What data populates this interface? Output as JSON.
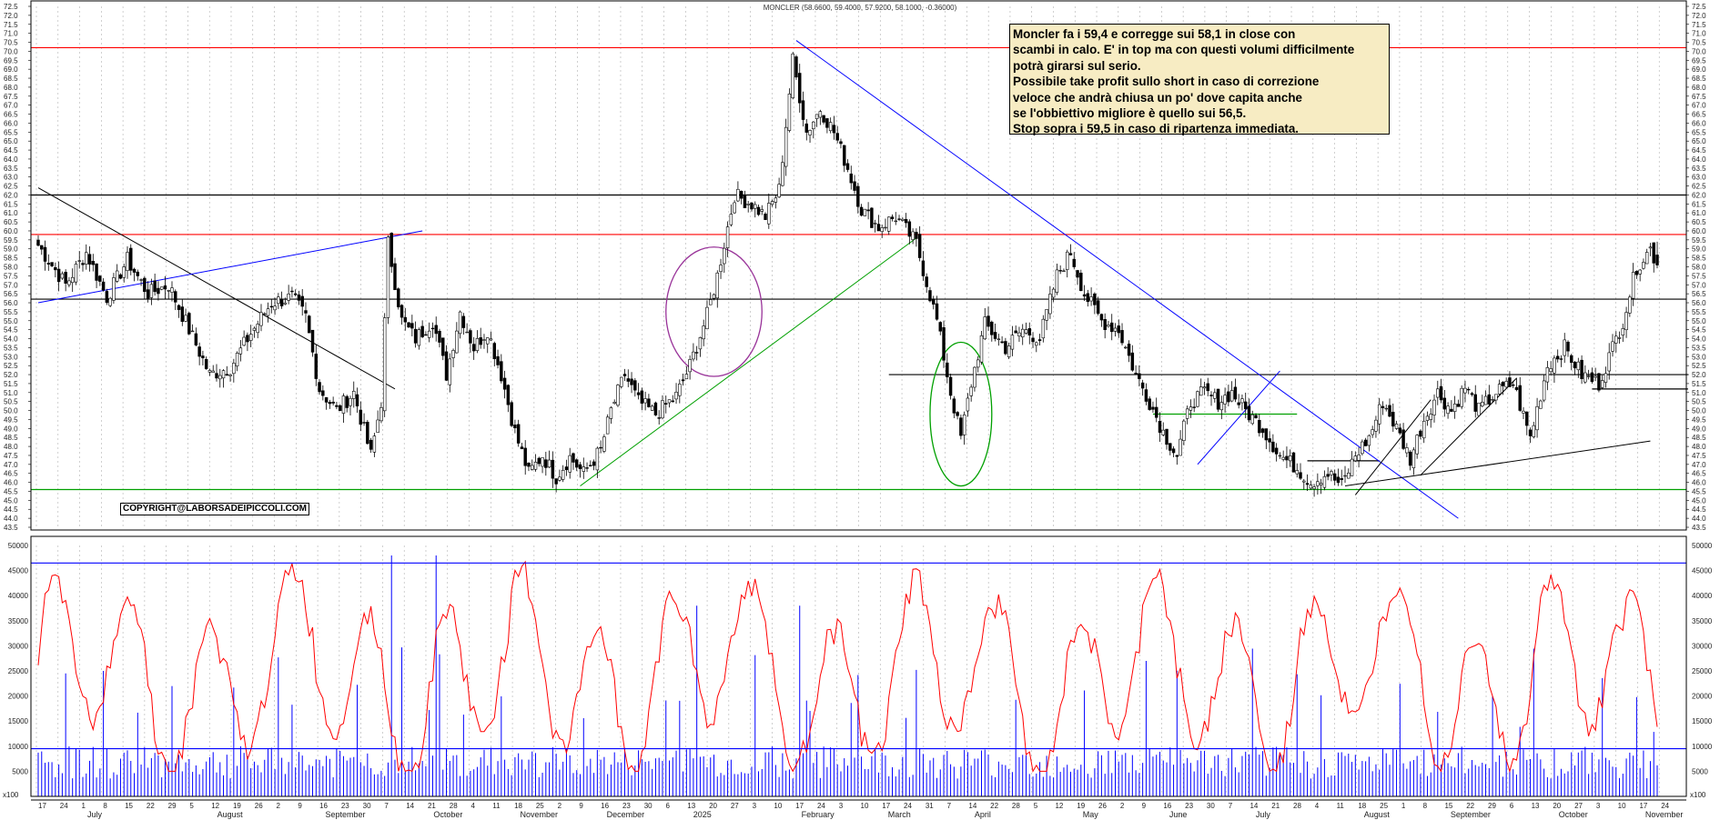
{
  "chart_data": {
    "type": "candlestick",
    "title": "MONCLER (58.6600, 59.4000, 57.9200, 58.1000, -0.36000)",
    "last_bar": {
      "open": 58.66,
      "high": 59.4,
      "low": 57.92,
      "close": 58.1,
      "change": -0.36
    },
    "price_axis": {
      "min": 43.5,
      "max": 72.5,
      "step": 0.5
    },
    "volume_axis": {
      "min": 0,
      "max": 50000,
      "ticks": [
        5000,
        10000,
        15000,
        20000,
        25000,
        30000,
        35000,
        40000,
        45000,
        50000
      ]
    },
    "date_ticks": [
      "17",
      "24",
      "1",
      "8",
      "15",
      "22",
      "29",
      "5",
      "12",
      "19",
      "26",
      "2",
      "9",
      "16",
      "23",
      "30",
      "7",
      "14",
      "21",
      "28",
      "4",
      "11",
      "18",
      "25",
      "2",
      "9",
      "16",
      "23",
      "30",
      "6",
      "13",
      "20",
      "27",
      "3",
      "10",
      "17",
      "24",
      "3",
      "10",
      "17",
      "24",
      "31",
      "7",
      "14",
      "22",
      "28",
      "5",
      "12",
      "19",
      "26",
      "2",
      "9",
      "16",
      "23",
      "30",
      "7",
      "14",
      "21",
      "28",
      "4",
      "11",
      "18",
      "25",
      "1",
      "8",
      "15",
      "22",
      "29",
      "6",
      "13",
      "20",
      "27",
      "3",
      "10",
      "17",
      "24"
    ],
    "months": [
      "July",
      "August",
      "September",
      "October",
      "November",
      "December",
      "2025",
      "February",
      "March",
      "April",
      "May",
      "June",
      "July",
      "August",
      "September",
      "October",
      "November"
    ],
    "horizontal_levels": [
      {
        "price": 70.2,
        "color": "#ff0000"
      },
      {
        "price": 62.0,
        "color": "#000000"
      },
      {
        "price": 59.8,
        "color": "#ff0000"
      },
      {
        "price": 56.2,
        "color": "#000000"
      },
      {
        "price": 45.6,
        "color": "#00a000"
      }
    ],
    "partial_levels": [
      {
        "price": 52.0,
        "from_index": 248,
        "to_index": 481,
        "color": "#000000"
      },
      {
        "price": 51.2,
        "from_index": 453,
        "to_index": 481,
        "color": "#000000"
      },
      {
        "price": 49.8,
        "from_index": 325,
        "to_index": 367,
        "color": "#00a000"
      },
      {
        "price": 47.2,
        "from_index": 370,
        "to_index": 391,
        "color": "#000000"
      }
    ],
    "trendlines": [
      {
        "from": [
          0,
          62.4
        ],
        "to": [
          104,
          51.2
        ],
        "color": "#000000"
      },
      {
        "from": [
          0,
          56.0
        ],
        "to": [
          112,
          60.0
        ],
        "color": "#0000ff"
      },
      {
        "from": [
          158,
          45.8
        ],
        "to": [
          256,
          59.6
        ],
        "color": "#00a000"
      },
      {
        "from": [
          221,
          70.6
        ],
        "to": [
          414,
          44.0
        ],
        "color": "#0000ff"
      },
      {
        "from": [
          338,
          47.0
        ],
        "to": [
          362,
          52.2
        ],
        "color": "#0000ff"
      },
      {
        "from": [
          381,
          45.8
        ],
        "to": [
          470,
          48.3
        ],
        "color": "#000000"
      },
      {
        "from": [
          384,
          45.3
        ],
        "to": [
          406,
          50.6
        ],
        "color": "#000000"
      },
      {
        "from": [
          403,
          46.4
        ],
        "to": [
          431,
          51.8
        ],
        "color": "#000000"
      }
    ],
    "ellipses": [
      {
        "index": 197,
        "price": 55.5,
        "rx_bars": 14,
        "ry_price": 3.6,
        "color": "#993399"
      },
      {
        "index": 269,
        "price": 49.8,
        "rx_bars": 9,
        "ry_price": 4.0,
        "color": "#00a000"
      }
    ],
    "volume_threshold_high": 46500,
    "volume_threshold_low": 9500,
    "anchors": [
      [
        0,
        59.2
      ],
      [
        8,
        57.0
      ],
      [
        14,
        58.8
      ],
      [
        20,
        56.3
      ],
      [
        26,
        58.4
      ],
      [
        32,
        56.5
      ],
      [
        38,
        57.0
      ],
      [
        44,
        54.5
      ],
      [
        50,
        52.0
      ],
      [
        56,
        52.4
      ],
      [
        62,
        54.3
      ],
      [
        68,
        56.0
      ],
      [
        74,
        56.3
      ],
      [
        78,
        55.2
      ],
      [
        82,
        51.2
      ],
      [
        87,
        50.0
      ],
      [
        92,
        51.0
      ],
      [
        97,
        47.5
      ],
      [
        100,
        50.5
      ],
      [
        102,
        59.3
      ],
      [
        106,
        55.0
      ],
      [
        110,
        54.0
      ],
      [
        115,
        55.0
      ],
      [
        119,
        52.0
      ],
      [
        123,
        55.5
      ],
      [
        127,
        53.5
      ],
      [
        131,
        54.5
      ],
      [
        135,
        52.0
      ],
      [
        139,
        48.8
      ],
      [
        143,
        46.5
      ],
      [
        147,
        47.5
      ],
      [
        151,
        46.3
      ],
      [
        155,
        47.4
      ],
      [
        159,
        46.5
      ],
      [
        164,
        47.8
      ],
      [
        167,
        50.0
      ],
      [
        171,
        52.0
      ],
      [
        175,
        50.5
      ],
      [
        180,
        49.8
      ],
      [
        186,
        50.8
      ],
      [
        190,
        52.5
      ],
      [
        195,
        55.3
      ],
      [
        198,
        57.5
      ],
      [
        203,
        62.0
      ],
      [
        208,
        61.5
      ],
      [
        212,
        60.8
      ],
      [
        216,
        62.3
      ],
      [
        220,
        69.5
      ],
      [
        224,
        65.5
      ],
      [
        228,
        66.8
      ],
      [
        232,
        65.5
      ],
      [
        236,
        63.5
      ],
      [
        240,
        61.2
      ],
      [
        245,
        60.2
      ],
      [
        250,
        60.8
      ],
      [
        256,
        59.3
      ],
      [
        262,
        55.0
      ],
      [
        266,
        51.0
      ],
      [
        269,
        48.5
      ],
      [
        272,
        51.5
      ],
      [
        276,
        54.8
      ],
      [
        282,
        53.5
      ],
      [
        287,
        54.5
      ],
      [
        292,
        54.0
      ],
      [
        297,
        57.5
      ],
      [
        301,
        58.8
      ],
      [
        305,
        56.5
      ],
      [
        310,
        55.0
      ],
      [
        315,
        54.5
      ],
      [
        320,
        52.0
      ],
      [
        324,
        50.5
      ],
      [
        328,
        48.8
      ],
      [
        332,
        47.5
      ],
      [
        336,
        50.5
      ],
      [
        340,
        51.0
      ],
      [
        344,
        50.5
      ],
      [
        348,
        51.0
      ],
      [
        352,
        50.0
      ],
      [
        357,
        49.0
      ],
      [
        362,
        47.5
      ],
      [
        367,
        46.8
      ],
      [
        371,
        46.0
      ],
      [
        376,
        46.5
      ],
      [
        380,
        45.8
      ],
      [
        384,
        47.5
      ],
      [
        388,
        48.5
      ],
      [
        392,
        50.5
      ],
      [
        396,
        49.0
      ],
      [
        400,
        47.3
      ],
      [
        404,
        49.5
      ],
      [
        408,
        51.0
      ],
      [
        412,
        50.0
      ],
      [
        416,
        51.3
      ],
      [
        420,
        50.0
      ],
      [
        425,
        51.0
      ],
      [
        430,
        51.5
      ],
      [
        435,
        48.5
      ],
      [
        440,
        52.5
      ],
      [
        445,
        53.5
      ],
      [
        450,
        52.0
      ],
      [
        455,
        51.5
      ],
      [
        458,
        53.0
      ],
      [
        462,
        55.0
      ],
      [
        466,
        58.0
      ],
      [
        470,
        59.0
      ],
      [
        472,
        58.1
      ]
    ]
  },
  "annotation": {
    "lines": [
      "Moncler fa i 59,4 e corregge sui 58,1 in close con",
      "scambi in calo. E' in top ma con questi volumi difficilmente",
      "potrà girarsi sul serio.",
      "Possibile take profit sullo short in caso di correzione",
      "veloce che andrà chiusa un po' dove capita anche",
      "se l'obbiettivo migliore è quello sui 56,5.",
      "Stop sopra i 59,5 in caso di ripartenza immediata."
    ]
  },
  "copyright": "COPYRIGHT@LABORSADEIPICCOLI.COM",
  "corner_labels": {
    "left": "x100",
    "right": "x100"
  },
  "colors": {
    "candle": "#000000",
    "volume_bars": "#0000ff",
    "volume_average": "#ff0000",
    "grid": "#b0b0b0",
    "note_bg": "#f7ecc3"
  }
}
